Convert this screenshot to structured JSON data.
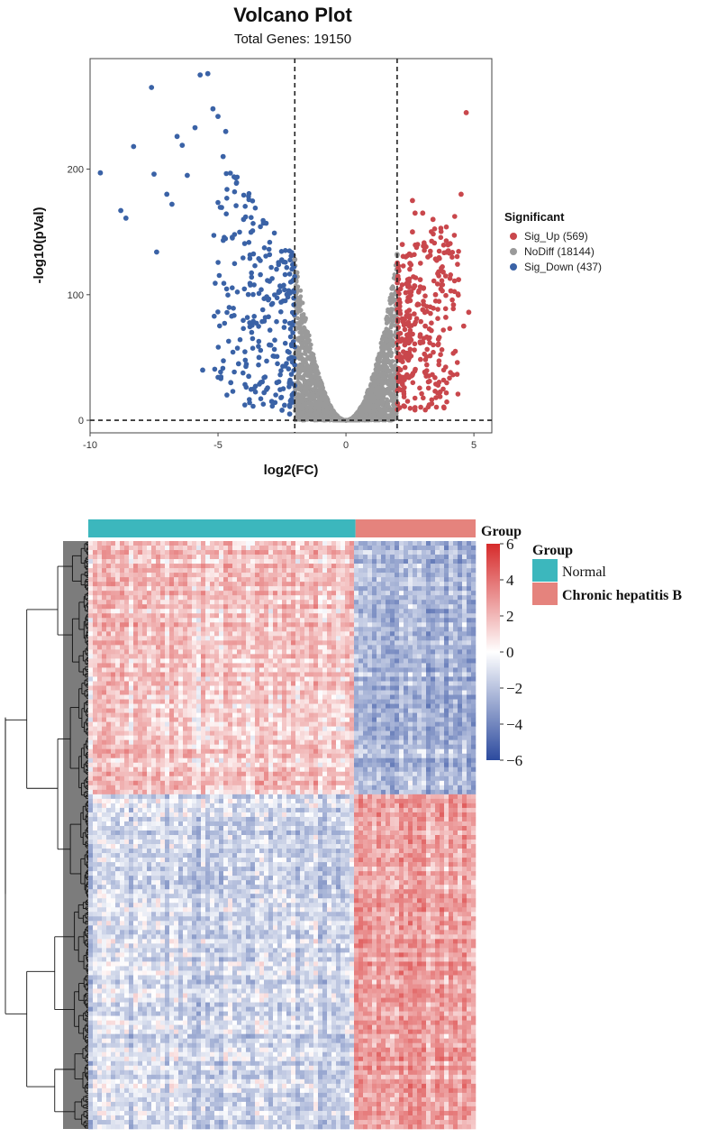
{
  "chart_data": [
    {
      "type": "scatter",
      "title": "Volcano Plot",
      "subtitle": "Total Genes: 19150",
      "xlabel": "log2(FC)",
      "ylabel": "-log10(pVal)",
      "xlim": [
        -10,
        5.7
      ],
      "ylim": [
        -10,
        288
      ],
      "x_ticks": [
        -10,
        -5,
        0,
        5
      ],
      "y_ticks": [
        0,
        100,
        200
      ],
      "thresholds": {
        "log2fc": [
          -2,
          2
        ],
        "neg_log10_p": 0
      },
      "legend": {
        "title": "Significant",
        "position": "right",
        "entries": [
          {
            "label": "Sig_Up (569)",
            "color": "#c9474c",
            "count": 569
          },
          {
            "label": "NoDiff (18144)",
            "color": "#9a9a9a",
            "count": 18144
          },
          {
            "label": "Sig_Down (437)",
            "color": "#3a62a6",
            "count": 437
          }
        ]
      },
      "series": [
        {
          "name": "Sig_Down",
          "color": "#3a62a6",
          "points": [
            [
              -9.6,
              197
            ],
            [
              -8.8,
              167
            ],
            [
              -8.6,
              161
            ],
            [
              -8.3,
              218
            ],
            [
              -7.6,
              265
            ],
            [
              -7.5,
              196
            ],
            [
              -7.4,
              134
            ],
            [
              -7.0,
              180
            ],
            [
              -6.8,
              172
            ],
            [
              -6.6,
              226
            ],
            [
              -6.4,
              219
            ],
            [
              -6.2,
              195
            ],
            [
              -5.9,
              233
            ],
            [
              -5.7,
              275
            ],
            [
              -5.6,
              40
            ],
            [
              -5.4,
              276
            ],
            [
              -5.2,
              248
            ],
            [
              -5.0,
              242
            ],
            [
              -4.8,
              210
            ],
            [
              -4.7,
              230
            ],
            [
              -4.5,
              30
            ],
            [
              -4.3,
              193
            ],
            [
              -4.2,
              45
            ],
            [
              -4.0,
              160
            ],
            [
              -3.8,
              35
            ],
            [
              -3.6,
              25
            ],
            [
              -3.4,
              50
            ],
            [
              -3.2,
              22
            ],
            [
              -3.0,
              60
            ],
            [
              -2.9,
              15
            ],
            [
              -2.7,
              30
            ],
            [
              -2.5,
              8
            ],
            [
              -2.4,
              12
            ],
            [
              -2.2,
              5
            ],
            [
              -2.1,
              20
            ]
          ]
        },
        {
          "name": "Sig_Up",
          "color": "#c9474c",
          "points": [
            [
              2.1,
              10
            ],
            [
              2.2,
              30
            ],
            [
              2.3,
              60
            ],
            [
              2.4,
              95
            ],
            [
              2.5,
              125
            ],
            [
              2.6,
              150
            ],
            [
              2.7,
              165
            ],
            [
              2.8,
              140
            ],
            [
              2.9,
              112
            ],
            [
              3.0,
              88
            ],
            [
              3.1,
              75
            ],
            [
              3.2,
              130
            ],
            [
              3.4,
              160
            ],
            [
              3.5,
              100
            ],
            [
              3.6,
              60
            ],
            [
              3.8,
              118
            ],
            [
              3.9,
              82
            ],
            [
              4.0,
              135
            ],
            [
              4.1,
              103
            ],
            [
              4.2,
              92
            ],
            [
              4.4,
              112
            ],
            [
              4.5,
              180
            ],
            [
              4.6,
              75
            ],
            [
              4.7,
              245
            ],
            [
              4.8,
              86
            ],
            [
              3.0,
              165
            ],
            [
              2.6,
              175
            ],
            [
              2.2,
              140
            ]
          ]
        },
        {
          "name": "NoDiff",
          "color": "#9a9a9a",
          "points": [
            [
              -2.0,
              128
            ],
            [
              -1.8,
              95
            ],
            [
              -1.6,
              70
            ],
            [
              -1.4,
              50
            ],
            [
              -1.2,
              35
            ],
            [
              -1.0,
              22
            ],
            [
              -0.8,
              12
            ],
            [
              -0.6,
              6
            ],
            [
              -0.4,
              3
            ],
            [
              -0.2,
              1
            ],
            [
              0.0,
              0
            ],
            [
              0.2,
              1
            ],
            [
              0.4,
              3
            ],
            [
              0.6,
              7
            ],
            [
              0.8,
              14
            ],
            [
              1.0,
              25
            ],
            [
              1.2,
              40
            ],
            [
              1.4,
              58
            ],
            [
              1.6,
              80
            ],
            [
              1.8,
              105
            ],
            [
              2.0,
              132
            ]
          ]
        }
      ]
    },
    {
      "type": "heatmap",
      "legend": {
        "title": "Group",
        "colorbar_ticks": [
          6,
          4,
          2,
          0,
          -2,
          -4,
          -6
        ],
        "colorbar_range": [
          -6,
          6
        ],
        "colors": {
          "low": "#2c4a9e",
          "mid": "#ffffff",
          "high": "#d62b2b"
        },
        "group_title": "Group",
        "groups": [
          {
            "label": "Normal",
            "color": "#3cb7bd"
          },
          {
            "label": "Chronic hepatitis B",
            "color": "#e5837d"
          }
        ]
      },
      "column_groups": [
        {
          "group": "Normal",
          "fraction": 0.69
        },
        {
          "group": "Chronic hepatitis B",
          "fraction": 0.31
        }
      ],
      "row_blocks": [
        {
          "fraction": 0.43,
          "Normal": 1.2,
          "Chronic hepatitis B": -2.2
        },
        {
          "fraction": 0.57,
          "Normal": -1.1,
          "Chronic hepatitis B": 2.3
        }
      ]
    }
  ]
}
